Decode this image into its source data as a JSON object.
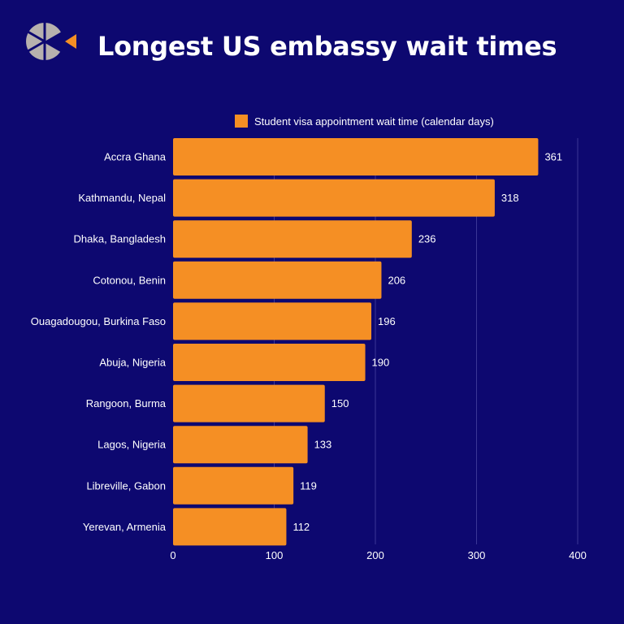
{
  "title": "Longest US embassy wait times",
  "logo": {
    "icon": "company-logo-icon"
  },
  "colors": {
    "background": "#0d0870",
    "bar": "#f58f24",
    "grid": "#3a3696",
    "text": "#ffffff",
    "logo_grey": "#b7b1ae"
  },
  "chart_data": {
    "type": "bar",
    "orientation": "horizontal",
    "title": "Longest US embassy wait times",
    "categories": [
      "Accra Ghana",
      "Kathmandu, Nepal",
      "Dhaka, Bangladesh",
      "Cotonou, Benin",
      "Ouagadougou, Burkina Faso",
      "Abuja, Nigeria",
      "Rangoon, Burma",
      "Lagos, Nigeria",
      "Libreville, Gabon",
      "Yerevan, Armenia"
    ],
    "series": [
      {
        "name": "Student visa appointment wait time (calendar days)",
        "values": [
          361,
          318,
          236,
          206,
          196,
          190,
          150,
          133,
          119,
          112
        ]
      }
    ],
    "xlim": [
      0,
      400
    ],
    "xticks": [
      0,
      100,
      200,
      300,
      400
    ],
    "xlabel": "",
    "ylabel": "",
    "grid": "vertical",
    "legend": "top",
    "data_labels": true
  }
}
